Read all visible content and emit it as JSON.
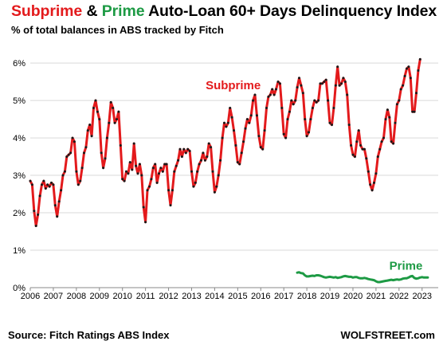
{
  "title": {
    "part1": "Subprime",
    "part2": " & ",
    "part3": "Prime",
    "part4": " Auto-Loan 60+ Days Delinquency Index"
  },
  "subtitle": "% of total balances in ABS tracked by Fitch",
  "source": "Source: Fitch Ratings ABS Index",
  "brand": "WOLFSTREET.com",
  "colors": {
    "subprime": "#e31a1c",
    "prime": "#1d9a44",
    "markers": "#1a1a1a",
    "grid": "#d9d9d9"
  },
  "chart_data": {
    "type": "line",
    "title": "Subprime & Prime Auto-Loan 60+ Days Delinquency Index",
    "subtitle": "% of total balances in ABS tracked by Fitch",
    "xlim": [
      2006,
      2023.7
    ],
    "ylim": [
      0,
      6.3
    ],
    "y_ticks": [
      0,
      1,
      2,
      3,
      4,
      5,
      6
    ],
    "y_tick_labels": [
      "0%",
      "1%",
      "2%",
      "3%",
      "4%",
      "5%",
      "6%"
    ],
    "x_ticks": [
      2006,
      2007,
      2008,
      2009,
      2010,
      2011,
      2012,
      2013,
      2014,
      2015,
      2016,
      2017,
      2018,
      2019,
      2020,
      2021,
      2022,
      2023
    ],
    "x_tick_labels": [
      "2006",
      "2007",
      "2008",
      "2009",
      "2010",
      "2011",
      "2012",
      "2013",
      "2014",
      "2015",
      "2016",
      "2017",
      "2018",
      "2019",
      "2020",
      "2021",
      "2022",
      "2023"
    ],
    "grid": "horizontal",
    "series": [
      {
        "name": "Subprime",
        "label_text": "Subprime",
        "color": "#e31a1c",
        "markers": true,
        "start": 2006.0,
        "step": 0.0833333,
        "values": [
          2.85,
          2.75,
          2.05,
          1.65,
          1.95,
          2.45,
          2.75,
          2.85,
          2.65,
          2.75,
          2.7,
          2.8,
          2.75,
          2.2,
          1.9,
          2.3,
          2.6,
          3.0,
          3.1,
          3.5,
          3.55,
          3.6,
          4.0,
          3.9,
          3.1,
          2.75,
          2.85,
          3.2,
          3.6,
          3.75,
          4.2,
          4.35,
          4.05,
          4.8,
          5.0,
          4.7,
          4.5,
          3.6,
          3.2,
          3.45,
          4.0,
          4.4,
          4.95,
          4.8,
          4.4,
          4.5,
          4.7,
          3.8,
          2.9,
          2.85,
          3.1,
          3.05,
          3.35,
          3.15,
          3.85,
          3.25,
          3.05,
          3.3,
          3.0,
          2.15,
          1.75,
          2.6,
          2.7,
          2.9,
          3.2,
          3.3,
          2.8,
          3.05,
          3.2,
          3.1,
          3.3,
          3.3,
          2.6,
          2.2,
          2.6,
          3.1,
          3.25,
          3.4,
          3.7,
          3.5,
          3.7,
          3.6,
          3.7,
          3.65,
          3.1,
          2.7,
          2.8,
          3.1,
          3.3,
          3.4,
          3.6,
          3.4,
          3.5,
          3.85,
          3.75,
          3.1,
          2.55,
          2.7,
          3.0,
          3.4,
          4.0,
          4.4,
          4.3,
          4.4,
          4.8,
          4.55,
          4.2,
          3.8,
          3.35,
          3.3,
          3.6,
          3.9,
          4.25,
          4.5,
          4.4,
          4.6,
          5.0,
          5.15,
          4.6,
          4.05,
          3.75,
          3.7,
          4.2,
          4.8,
          5.1,
          5.15,
          5.3,
          5.15,
          5.3,
          5.5,
          5.45,
          4.8,
          4.1,
          4.0,
          4.5,
          4.7,
          5.0,
          4.9,
          5.0,
          5.35,
          5.6,
          5.4,
          5.2,
          4.5,
          4.05,
          4.15,
          4.5,
          4.8,
          5.0,
          4.95,
          5.0,
          5.45,
          5.45,
          5.5,
          5.55,
          5.0,
          4.4,
          4.35,
          4.8,
          5.4,
          5.9,
          5.4,
          5.45,
          5.6,
          5.5,
          5.15,
          4.35,
          3.8,
          3.55,
          3.5,
          3.9,
          4.2,
          3.8,
          3.7,
          3.7,
          3.45,
          3.1,
          2.75,
          2.6,
          2.8,
          3.05,
          3.5,
          3.7,
          3.9,
          4.0,
          4.5,
          4.75,
          4.55,
          3.9,
          3.85,
          4.4,
          4.9,
          5.0,
          5.3,
          5.4,
          5.65,
          5.85,
          5.9,
          5.6,
          4.7,
          4.7,
          5.2,
          5.8,
          6.1
        ]
      },
      {
        "name": "Prime",
        "label_text": "Prime",
        "color": "#1d9a44",
        "markers": false,
        "start": 2017.58,
        "step": 0.0833333,
        "values": [
          0.4,
          0.41,
          0.39,
          0.38,
          0.33,
          0.3,
          0.3,
          0.31,
          0.32,
          0.31,
          0.33,
          0.33,
          0.32,
          0.3,
          0.28,
          0.27,
          0.28,
          0.29,
          0.28,
          0.27,
          0.28,
          0.26,
          0.27,
          0.28,
          0.3,
          0.31,
          0.3,
          0.29,
          0.29,
          0.27,
          0.28,
          0.28,
          0.26,
          0.25,
          0.25,
          0.26,
          0.25,
          0.23,
          0.22,
          0.21,
          0.2,
          0.17,
          0.15,
          0.15,
          0.16,
          0.17,
          0.18,
          0.19,
          0.2,
          0.21,
          0.2,
          0.21,
          0.22,
          0.21,
          0.22,
          0.24,
          0.25,
          0.25,
          0.27,
          0.3,
          0.31,
          0.26,
          0.24,
          0.25,
          0.27,
          0.28,
          0.27,
          0.27,
          0.27
        ]
      }
    ]
  }
}
